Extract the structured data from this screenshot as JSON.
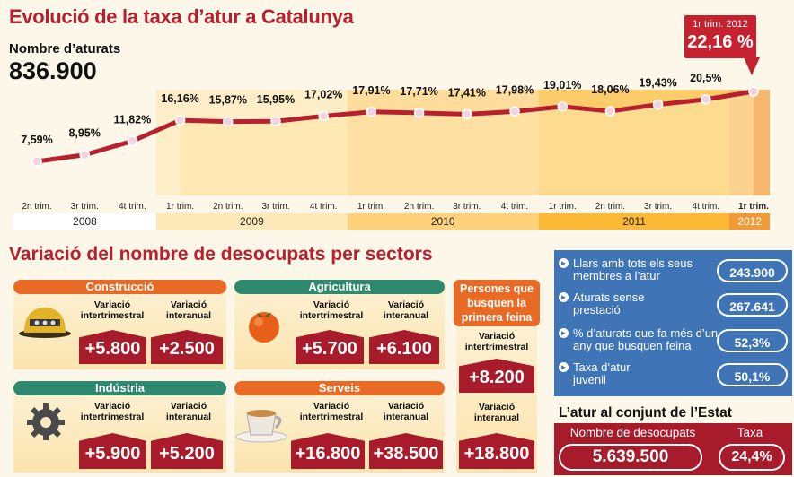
{
  "title": "Evolució de la taxa d’atur a Catalunya",
  "unemployed_count": {
    "label": "Nombre d’aturats",
    "value": "836.900"
  },
  "callout": {
    "line1": "1r trim. 2012",
    "line2": "22,16 %"
  },
  "chart_data": {
    "type": "line",
    "title": "Evolució de la taxa d’atur a Catalunya",
    "x": [
      "2n trim.",
      "3r trim.",
      "4t trim.",
      "1r trim.",
      "2n trim.",
      "3r trim.",
      "4t trim.",
      "1r trim.",
      "2n trim.",
      "3r trim.",
      "4t trim.",
      "1r trim.",
      "2n trim.",
      "3r trim.",
      "4t trim.",
      "1r trim."
    ],
    "years": [
      {
        "label": "2008",
        "count": 3,
        "color": "#ffffff"
      },
      {
        "label": "2009",
        "count": 4,
        "color": "#fde9b8"
      },
      {
        "label": "2010",
        "count": 4,
        "color": "#fdd27a"
      },
      {
        "label": "2011",
        "count": 4,
        "color": "#fbb935"
      },
      {
        "label": "2012",
        "count": 1,
        "color": "#f39a38"
      }
    ],
    "series": [
      {
        "values": [
          7.59,
          8.95,
          11.82,
          16.16,
          15.87,
          15.95,
          17.02,
          17.91,
          17.71,
          17.41,
          17.98,
          19.01,
          18.06,
          19.43,
          20.5,
          22.16
        ],
        "labels": [
          "7,59%",
          "8,95%",
          "11,82%",
          "16,16%",
          "15,87%",
          "15,95%",
          "17,02%",
          "17,91%",
          "17,71%",
          "17,41%",
          "17,98%",
          "19,01%",
          "18,06%",
          "19,43%",
          "20,5%",
          ""
        ]
      }
    ],
    "line_color": "#b7202e",
    "ylim": [
      0,
      25
    ]
  },
  "sectors": {
    "title": "Variació del nombre de desocupats per sectors",
    "col_intertrim": "Variació intertrimestral",
    "col_interanual": "Variació interanual",
    "items": [
      {
        "name": "Construcció",
        "color": "#e86a24",
        "icon": "helmet-icon",
        "intertrim": "+5.800",
        "interanual": "+2.500"
      },
      {
        "name": "Agricultura",
        "color": "#2e8a6e",
        "icon": "persimmon-icon",
        "intertrim": "+5.700",
        "interanual": "+6.100"
      },
      {
        "name": "Indústria",
        "color": "#2e8a6e",
        "icon": "gear-icon",
        "intertrim": "+5.900",
        "interanual": "+5.200"
      },
      {
        "name": "Serveis",
        "color": "#e86a24",
        "icon": "coffee-cup-icon",
        "intertrim": "+16.800",
        "interanual": "+38.500"
      }
    ],
    "first_job": {
      "title": "Persones que busquen la primera feina",
      "intertrim_label": "Variació intertrimestral",
      "intertrim": "+8.200",
      "interanual_label": "Variació interanual",
      "interanual": "+18.800"
    }
  },
  "stats": [
    {
      "text": "Llars amb tots els seus membres a l’atur",
      "value": "243.900"
    },
    {
      "text": "Aturats sense prestació",
      "value": "267.641"
    },
    {
      "text": "% d’aturats que fa més d’un any que busquen feina",
      "value": "52,3%"
    },
    {
      "text": "Taxa d’atur juvenil",
      "value": "50,1%"
    }
  ],
  "state": {
    "title": "L’atur al conjunt de l’Estat",
    "col1_label": "Nombre de desocupats",
    "col1_value": "5.639.500",
    "col2_label": "Taxa",
    "col2_value": "24,4%"
  },
  "colors": {
    "accent_red": "#b7202e",
    "dark_red": "#a81b2a",
    "blue": "#3f74b6",
    "orange": "#e86a24",
    "green": "#2e8a6e"
  }
}
